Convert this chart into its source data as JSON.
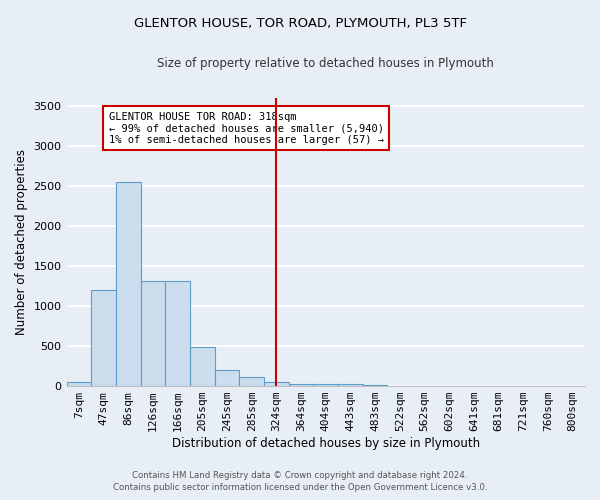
{
  "title": "GLENTOR HOUSE, TOR ROAD, PLYMOUTH, PL3 5TF",
  "subtitle": "Size of property relative to detached houses in Plymouth",
  "xlabel": "Distribution of detached houses by size in Plymouth",
  "ylabel": "Number of detached properties",
  "bar_labels": [
    "7sqm",
    "47sqm",
    "86sqm",
    "126sqm",
    "166sqm",
    "205sqm",
    "245sqm",
    "285sqm",
    "324sqm",
    "364sqm",
    "404sqm",
    "443sqm",
    "483sqm",
    "522sqm",
    "562sqm",
    "602sqm",
    "641sqm",
    "681sqm",
    "721sqm",
    "760sqm",
    "800sqm"
  ],
  "bar_values": [
    50,
    1200,
    2550,
    1310,
    1310,
    490,
    195,
    110,
    45,
    25,
    25,
    20,
    15,
    0,
    0,
    0,
    0,
    0,
    0,
    0,
    0
  ],
  "bar_color": "#ccdded",
  "bar_edgecolor": "#5b9ec9",
  "vline_x": 8,
  "vline_color": "#cc0000",
  "annotation_text": "GLENTOR HOUSE TOR ROAD: 318sqm\n← 99% of detached houses are smaller (5,940)\n1% of semi-detached houses are larger (57) →",
  "annotation_box_facecolor": "#ffffff",
  "annotation_box_edgecolor": "#cc0000",
  "ylim": [
    0,
    3600
  ],
  "yticks": [
    0,
    500,
    1000,
    1500,
    2000,
    2500,
    3000,
    3500
  ],
  "bg_color": "#e8eef5",
  "grid_color": "#ffffff",
  "footer_line1": "Contains HM Land Registry data © Crown copyright and database right 2024.",
  "footer_line2": "Contains public sector information licensed under the Open Government Licence v3.0."
}
